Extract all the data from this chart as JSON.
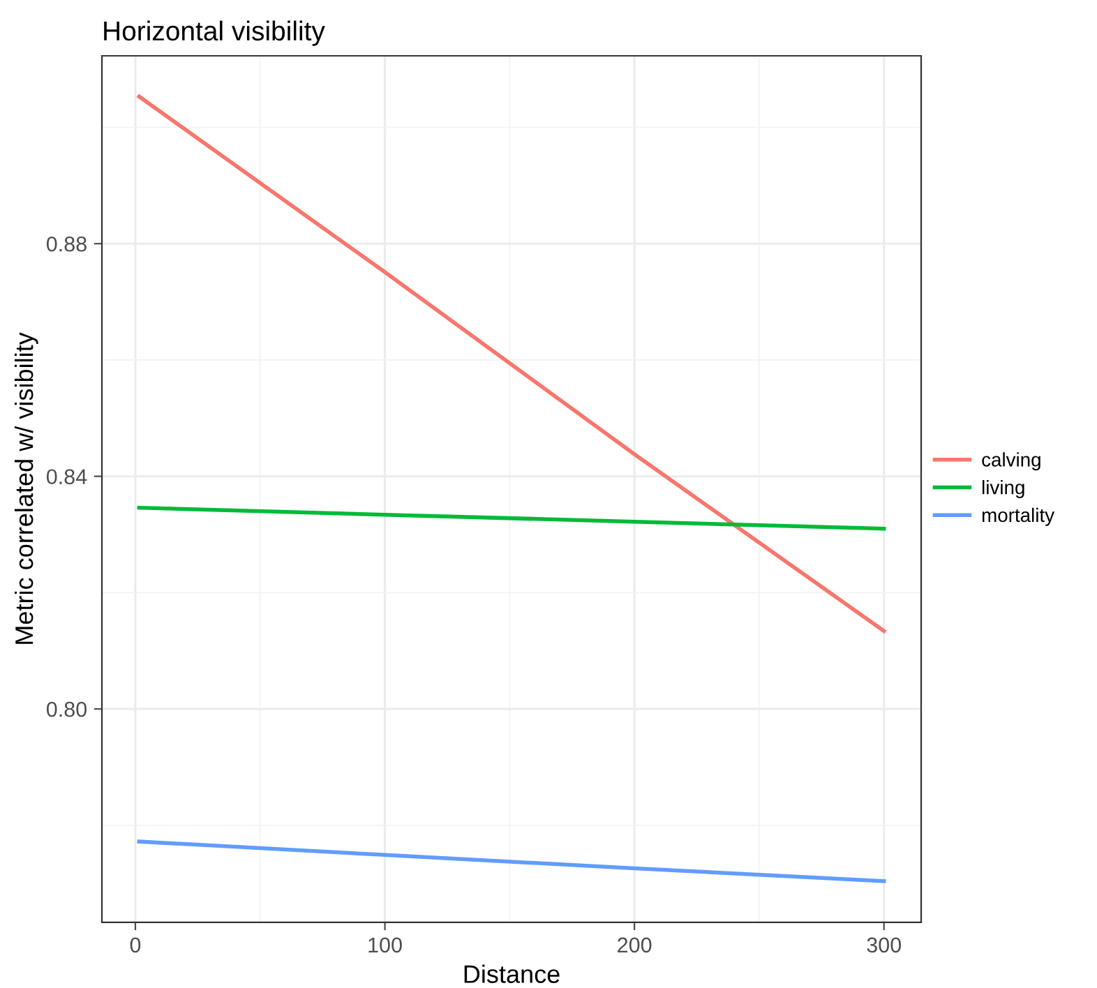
{
  "chart_data": {
    "type": "line",
    "title": "Horizontal visibility",
    "xlabel": "Distance",
    "ylabel": "Metric correlated w/ visibility",
    "x": [
      1.5,
      100,
      200,
      300
    ],
    "series": [
      {
        "name": "calving",
        "color": "#f8766d",
        "values": [
          0.9053,
          0.8751,
          0.8438,
          0.8134
        ]
      },
      {
        "name": "living",
        "color": "#00ba38",
        "values": [
          0.8346,
          0.8334,
          0.8322,
          0.831
        ]
      },
      {
        "name": "mortality",
        "color": "#619cff",
        "values": [
          0.7772,
          0.7749,
          0.7726,
          0.7704
        ]
      }
    ],
    "xlim": [
      -13.4,
      314.9
    ],
    "ylim": [
      0.7633,
      0.9123
    ],
    "xticks": [
      0,
      100,
      200,
      300
    ],
    "yticks": [
      {
        "value": 0.8,
        "label": "0.80"
      },
      {
        "value": 0.84,
        "label": "0.84"
      },
      {
        "value": 0.88,
        "label": "0.88"
      }
    ],
    "grid": true,
    "legend": "right",
    "marker": "none",
    "line_style": "solid"
  }
}
